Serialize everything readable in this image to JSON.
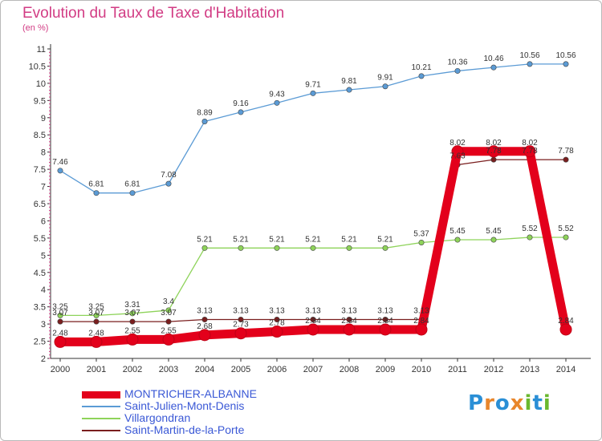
{
  "title": "Evolution du Taux de Taxe d'Habitation",
  "unit_label": "(en %)",
  "logo": {
    "text": "Proxiti",
    "letter_colors": [
      "#2a8fd6",
      "#e8862b",
      "#2a8fd6",
      "#e8862b",
      "#6ab82e",
      "#2a8fd6",
      "#6ab82e"
    ]
  },
  "chart_data": {
    "type": "line",
    "x": [
      "2000",
      "2001",
      "2002",
      "2003",
      "2004",
      "2005",
      "2006",
      "2007",
      "2008",
      "2009",
      "2010",
      "2011",
      "2012",
      "2013",
      "2014"
    ],
    "ylim": [
      2,
      11
    ],
    "yticks": [
      "2",
      "2.5",
      "3",
      "3.5",
      "4",
      "4.5",
      "5",
      "5.5",
      "6",
      "6.5",
      "7",
      "7.5",
      "8",
      "8.5",
      "9",
      "9.5",
      "10",
      "10.5",
      "11"
    ],
    "grid": false,
    "legend_position": "bottom-left",
    "series": [
      {
        "name": "MONTRICHER-ALBANNE",
        "color": "#e3001b",
        "labelColor": "#3a58d6",
        "values": [
          2.48,
          2.48,
          2.55,
          2.55,
          2.68,
          2.73,
          2.78,
          2.84,
          2.84,
          2.84,
          2.84,
          8.02,
          8.02,
          8.02,
          2.84
        ]
      },
      {
        "name": "Saint-Julien-Mont-Denis",
        "color": "#5b9bd5",
        "labelColor": "#3a58d6",
        "values": [
          7.46,
          6.81,
          6.81,
          7.08,
          8.89,
          9.16,
          9.43,
          9.71,
          9.81,
          9.91,
          10.21,
          10.36,
          10.46,
          10.56,
          10.56
        ]
      },
      {
        "name": "Villargondran",
        "color": "#8ed35a",
        "labelColor": "#3a58d6",
        "values": [
          3.25,
          3.25,
          3.31,
          3.4,
          5.21,
          5.21,
          5.21,
          5.21,
          5.21,
          5.21,
          5.37,
          5.45,
          5.45,
          5.52,
          5.52
        ]
      },
      {
        "name": "Saint-Martin-de-la-Porte",
        "color": "#7a1e1e",
        "labelColor": "#3a58d6",
        "values": [
          3.07,
          3.07,
          3.07,
          3.07,
          3.13,
          3.13,
          3.13,
          3.13,
          3.13,
          3.13,
          3.13,
          7.63,
          7.78,
          7.78,
          7.78
        ]
      }
    ]
  }
}
